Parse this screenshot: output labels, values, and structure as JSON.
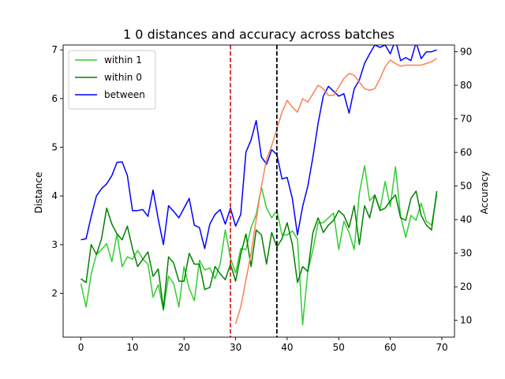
{
  "chart_data": {
    "type": "line",
    "title": "1 0 distances and accuracy across batches",
    "xlabel": "",
    "ylabel": "Distance",
    "y2label": "Accuracy",
    "xlim": [
      -3.45,
      72.45
    ],
    "ylim": [
      1.1,
      7.1
    ],
    "y2lim": [
      5,
      92
    ],
    "xticks": [
      0,
      10,
      20,
      30,
      40,
      50,
      60,
      70
    ],
    "yticks": [
      2,
      3,
      4,
      5,
      6,
      7
    ],
    "y2ticks": [
      10,
      20,
      30,
      40,
      50,
      60,
      70,
      80,
      90
    ],
    "legend_position": "top-left",
    "series": [
      {
        "name": "within 1",
        "axis": "left",
        "color": "#32cd32",
        "x": [
          0,
          1,
          2,
          3,
          4,
          5,
          6,
          7,
          8,
          9,
          10,
          11,
          12,
          13,
          14,
          15,
          16,
          17,
          18,
          19,
          20,
          21,
          22,
          23,
          24,
          25,
          26,
          27,
          28,
          29,
          30,
          31,
          32,
          33,
          34,
          35,
          36,
          37,
          38,
          39,
          40,
          41,
          42,
          43,
          44,
          45,
          46,
          47,
          48,
          49,
          50,
          51,
          52,
          53,
          54,
          55,
          56,
          57,
          58,
          59,
          60,
          61,
          62,
          63,
          64,
          65,
          66,
          67,
          68,
          69
        ],
        "values": [
          2.2,
          1.72,
          2.4,
          2.8,
          2.9,
          3.02,
          2.65,
          3.22,
          2.55,
          2.75,
          2.7,
          2.88,
          2.7,
          2.6,
          1.92,
          2.18,
          1.65,
          2.35,
          2.2,
          1.72,
          2.55,
          2.1,
          1.85,
          2.68,
          2.48,
          2.52,
          2.3,
          2.6,
          3.3,
          2.72,
          2.42,
          2.92,
          2.9,
          3.35,
          3.62,
          4.18,
          3.75,
          3.55,
          3.7,
          3.2,
          3.2,
          3.28,
          3.12,
          1.35,
          2.45,
          2.9,
          3.45,
          3.45,
          3.55,
          3.65,
          2.9,
          3.48,
          3.25,
          2.9,
          4.05,
          4.62,
          3.9,
          4.02,
          3.72,
          4.3,
          3.78,
          4.6,
          3.58,
          3.15,
          3.6,
          3.5,
          3.85,
          3.48,
          3.4,
          4.02
        ]
      },
      {
        "name": "within 0",
        "axis": "left",
        "color": "#008000",
        "x": [
          0,
          1,
          2,
          3,
          4,
          5,
          6,
          7,
          8,
          9,
          10,
          11,
          12,
          13,
          14,
          15,
          16,
          17,
          18,
          19,
          20,
          21,
          22,
          23,
          24,
          25,
          26,
          27,
          28,
          29,
          30,
          31,
          32,
          33,
          34,
          35,
          36,
          37,
          38,
          39,
          40,
          41,
          42,
          43,
          44,
          45,
          46,
          47,
          48,
          49,
          50,
          51,
          52,
          53,
          54,
          55,
          56,
          57,
          58,
          59,
          60,
          61,
          62,
          63,
          64,
          65,
          66,
          67,
          68,
          69
        ],
        "values": [
          2.3,
          2.22,
          3.0,
          2.8,
          3.12,
          3.75,
          3.42,
          3.22,
          3.1,
          3.38,
          2.92,
          2.55,
          2.7,
          2.85,
          2.35,
          2.5,
          1.68,
          2.75,
          2.62,
          2.25,
          2.25,
          2.82,
          2.6,
          2.6,
          2.08,
          2.12,
          2.55,
          2.4,
          2.28,
          2.6,
          2.25,
          2.8,
          3.22,
          2.55,
          3.3,
          3.2,
          2.6,
          3.25,
          2.95,
          3.12,
          3.45,
          3.0,
          2.22,
          2.55,
          2.45,
          3.25,
          3.55,
          3.25,
          3.4,
          3.5,
          3.7,
          3.6,
          3.35,
          3.8,
          3.0,
          3.8,
          3.55,
          4.02,
          3.7,
          3.75,
          3.9,
          4.02,
          3.55,
          3.5,
          3.95,
          4.1,
          3.6,
          3.4,
          3.3,
          4.1
        ]
      },
      {
        "name": "between",
        "axis": "left",
        "color": "#0000ff",
        "x": [
          0,
          1,
          2,
          3,
          4,
          5,
          6,
          7,
          8,
          9,
          10,
          11,
          12,
          13,
          14,
          15,
          16,
          17,
          18,
          19,
          20,
          21,
          22,
          23,
          24,
          25,
          26,
          27,
          28,
          29,
          30,
          31,
          32,
          33,
          34,
          35,
          36,
          37,
          38,
          39,
          40,
          41,
          42,
          43,
          44,
          45,
          46,
          47,
          48,
          49,
          50,
          51,
          52,
          53,
          54,
          55,
          56,
          57,
          58,
          59,
          60,
          61,
          62,
          63,
          64,
          65,
          66,
          67,
          68,
          69
        ],
        "values": [
          3.1,
          3.12,
          3.58,
          4.0,
          4.15,
          4.25,
          4.42,
          4.69,
          4.7,
          4.42,
          3.7,
          3.7,
          3.72,
          3.58,
          4.12,
          3.52,
          3.0,
          3.8,
          3.68,
          3.55,
          3.75,
          3.95,
          3.4,
          3.35,
          2.92,
          3.42,
          3.62,
          3.72,
          3.42,
          3.75,
          3.38,
          3.62,
          4.9,
          5.15,
          5.55,
          4.8,
          4.65,
          4.95,
          4.85,
          4.35,
          4.38,
          3.95,
          3.2,
          3.78,
          4.2,
          4.8,
          5.5,
          6.05,
          6.25,
          6.15,
          6.05,
          6.1,
          5.7,
          6.2,
          6.38,
          6.72,
          6.92,
          7.1,
          7.05,
          7.1,
          6.92,
          7.2,
          6.78,
          6.84,
          6.78,
          7.15,
          6.82,
          6.96,
          6.96,
          7.0
        ]
      },
      {
        "name": "",
        "axis": "right",
        "color": "#ff7f50",
        "x": [
          30,
          31,
          32,
          33,
          34,
          35,
          36,
          37,
          38,
          39,
          40,
          41,
          42,
          43,
          44,
          45,
          46,
          47,
          48,
          49,
          50,
          51,
          52,
          53,
          54,
          55,
          56,
          57,
          58,
          59,
          60,
          61,
          62,
          63,
          64,
          65,
          66,
          67,
          68,
          69
        ],
        "values": [
          9,
          14,
          22,
          30,
          40,
          50,
          58,
          62,
          67,
          72,
          75.5,
          73.5,
          72,
          76,
          75,
          77.5,
          80,
          79,
          77,
          77,
          79.5,
          82,
          83.5,
          83,
          81,
          79,
          78.5,
          79,
          82,
          85.5,
          87.5,
          86.5,
          85.7,
          86,
          86,
          86,
          86,
          86.5,
          87,
          88
        ]
      }
    ],
    "vlines": [
      {
        "x": 29,
        "color": "#d62728"
      },
      {
        "x": 38,
        "color": "#000000"
      }
    ]
  }
}
